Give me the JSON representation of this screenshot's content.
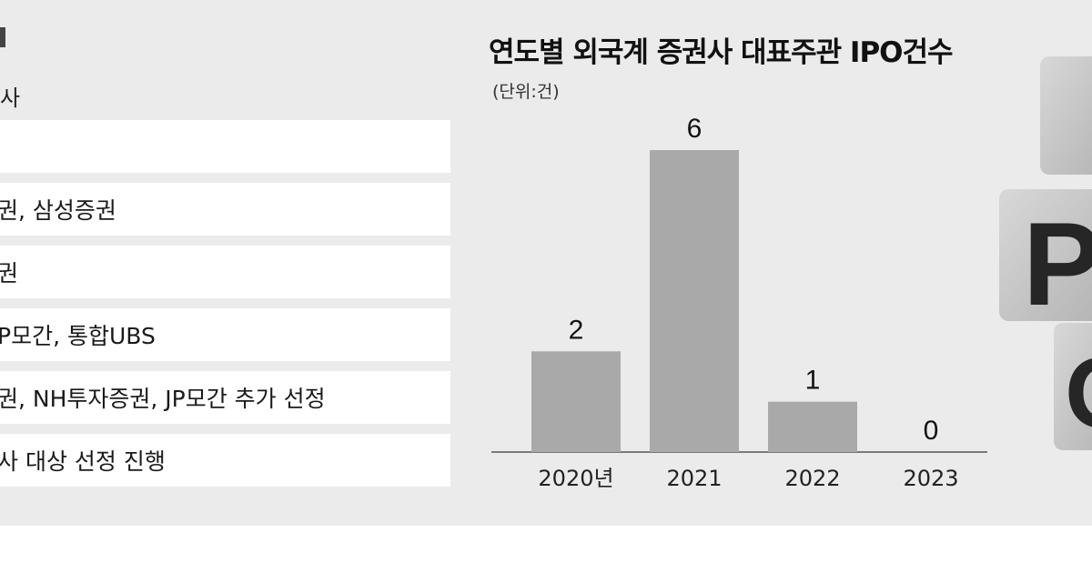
{
  "left_table": {
    "header": "사",
    "rows": [
      "",
      "권, 삼성증권",
      "권",
      "P모간, 통합UBS",
      "권, NH투자증권, JP모간 추가 선정",
      "사 대상 선정 진행"
    ]
  },
  "chart_data": {
    "type": "bar",
    "title": "연도별 외국계 증권사 대표주관 IPO건수",
    "subtitle": "(단위:건)",
    "categories": [
      "2020년",
      "2021",
      "2022",
      "2023"
    ],
    "values": [
      2,
      6,
      1,
      0
    ],
    "ylim": [
      0,
      6
    ],
    "grid": false,
    "bar_color": "#a9a9a9"
  },
  "decoration": {
    "letters": [
      "P",
      "O"
    ]
  }
}
